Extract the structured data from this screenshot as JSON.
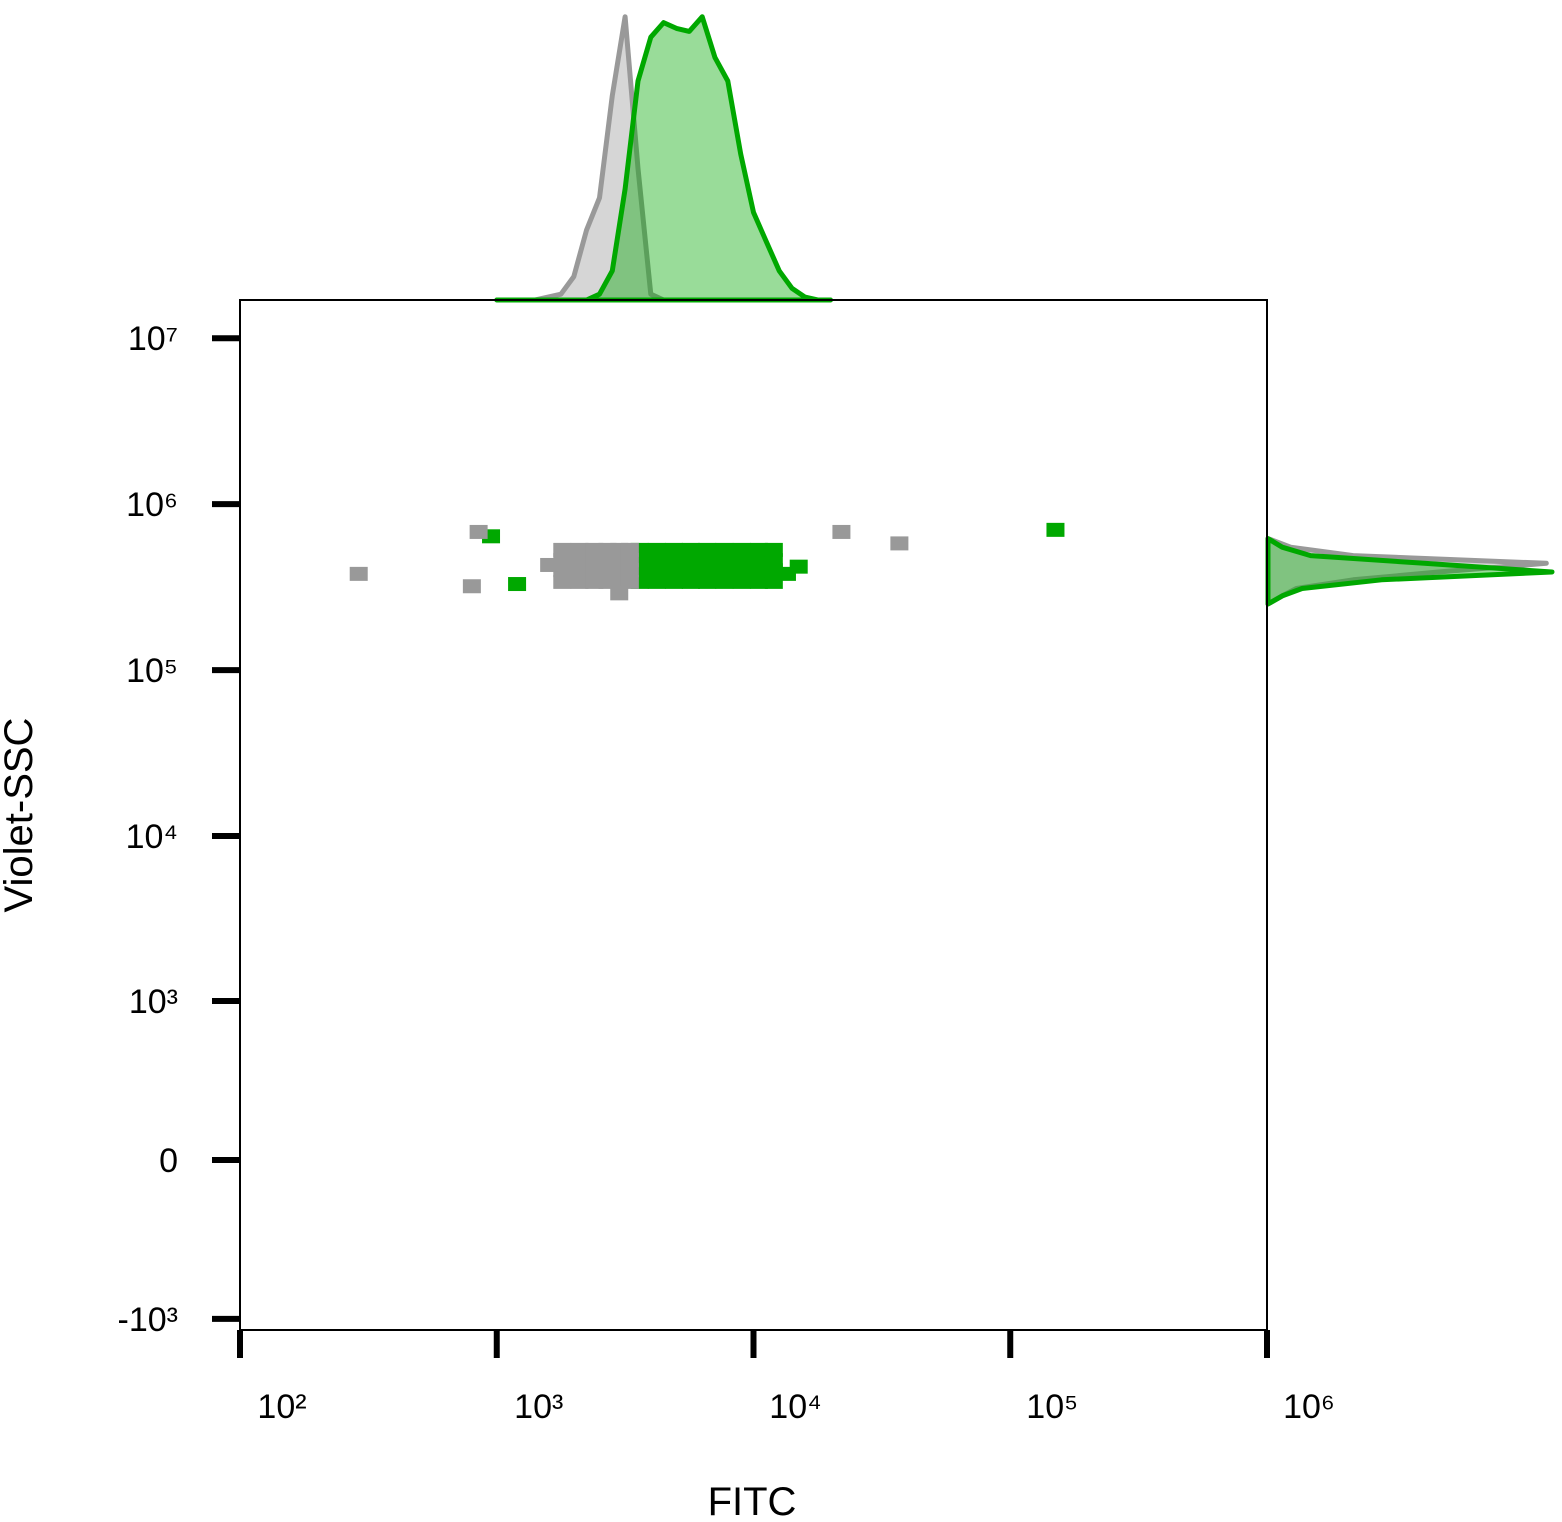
{
  "chart_data": [
    {
      "type": "scatter",
      "x_label": "FITC",
      "y_label": "Violet-SSC",
      "xscale": "log",
      "yscale": "asinh",
      "xlim": [
        100,
        1000000
      ],
      "ylim": [
        -1170,
        17000000
      ],
      "xticks": [
        {
          "value": 100,
          "label": "10²"
        },
        {
          "value": 1000,
          "label": "10³"
        },
        {
          "value": 10000,
          "label": "10⁴"
        },
        {
          "value": 100000,
          "label": "10⁵"
        },
        {
          "value": 1000000,
          "label": "10⁶"
        }
      ],
      "yticks": [
        {
          "value": -1000,
          "label": "-10³"
        },
        0,
        {
          "value": 1000,
          "label": "10³"
        },
        {
          "value": 10000,
          "label": "10⁴"
        },
        {
          "value": 100000,
          "label": "10⁵"
        },
        {
          "value": 1000000,
          "label": "10⁶"
        },
        {
          "value": 10000000,
          "label": "10⁷"
        }
      ],
      "series": [
        {
          "color": "#00a800",
          "x": [
            3600,
            4200,
            4900,
            5700,
            6600,
            7700,
            9000,
            10500,
            12000,
            3600,
            4200,
            4900,
            5700,
            6600,
            7700,
            9000,
            10500,
            12000,
            3600,
            4200,
            4900,
            5700,
            6600,
            7700,
            9000,
            10500,
            12000,
            3600,
            4200,
            4900,
            5700,
            6600,
            7700,
            9000,
            10500,
            12000,
            13500,
            15000,
            1200,
            950,
            150000
          ],
          "y": [
            340000,
            340000,
            340000,
            340000,
            340000,
            340000,
            340000,
            340000,
            340000,
            400000,
            400000,
            400000,
            400000,
            400000,
            400000,
            400000,
            400000,
            400000,
            460000,
            460000,
            460000,
            460000,
            460000,
            460000,
            460000,
            460000,
            460000,
            530000,
            530000,
            530000,
            530000,
            530000,
            530000,
            530000,
            530000,
            530000,
            380000,
            420000,
            330000,
            640000,
            700000
          ]
        },
        {
          "color": "#999999",
          "x": [
            1800,
            2100,
            2400,
            2700,
            3000,
            3300,
            1800,
            2100,
            2400,
            2700,
            3000,
            3300,
            1800,
            2100,
            2400,
            2700,
            3000,
            3300,
            1800,
            2100,
            2400,
            2700,
            3000,
            3300,
            290,
            800,
            850,
            22000,
            37000,
            3000,
            1600
          ],
          "y": [
            340000,
            340000,
            340000,
            340000,
            340000,
            340000,
            400000,
            400000,
            400000,
            400000,
            400000,
            400000,
            460000,
            460000,
            460000,
            460000,
            460000,
            460000,
            530000,
            530000,
            530000,
            530000,
            530000,
            530000,
            380000,
            320000,
            680000,
            680000,
            580000,
            290000,
            430000
          ]
        }
      ]
    },
    {
      "type": "area",
      "orientation": "vertical",
      "xscale": "log",
      "xlim": [
        100,
        1000000
      ],
      "ylim": [
        0,
        100
      ],
      "x": [
        1000,
        1122,
        1259,
        1413,
        1585,
        1778,
        1995,
        2239,
        2512,
        2818,
        3162,
        3548,
        3981,
        4467,
        5012,
        5623,
        6310,
        7079,
        7943,
        8913,
        10000,
        11220,
        12589,
        14125,
        15849,
        17783,
        19953
      ],
      "series": [
        {
          "color": "#999999",
          "values": [
            0,
            0,
            0,
            0,
            1,
            2,
            8,
            24,
            35,
            70,
            97,
            45,
            2,
            0,
            0,
            0,
            0,
            0,
            0,
            0,
            0,
            0,
            0,
            0,
            0,
            0,
            0
          ]
        },
        {
          "color": "#00a800",
          "values": [
            0,
            0,
            0,
            0,
            0,
            0,
            0,
            0,
            2,
            10,
            38,
            75,
            90,
            95,
            93,
            92,
            97,
            83,
            75,
            50,
            30,
            20,
            10,
            4,
            1,
            0,
            0
          ]
        }
      ]
    },
    {
      "type": "area",
      "orientation": "horizontal",
      "yscale": "asinh",
      "ylim": [
        -1170,
        17000000
      ],
      "xlim": [
        0,
        100
      ],
      "y": [
        250000,
        280000,
        310000,
        350000,
        390000,
        440000,
        490000,
        550000,
        620000
      ],
      "series": [
        {
          "color": "#999999",
          "values": [
            0,
            5,
            10,
            30,
            60,
            98,
            30,
            8,
            0
          ]
        },
        {
          "color": "#00a800",
          "values": [
            0,
            5,
            12,
            40,
            100,
            55,
            15,
            5,
            0
          ]
        }
      ]
    }
  ]
}
